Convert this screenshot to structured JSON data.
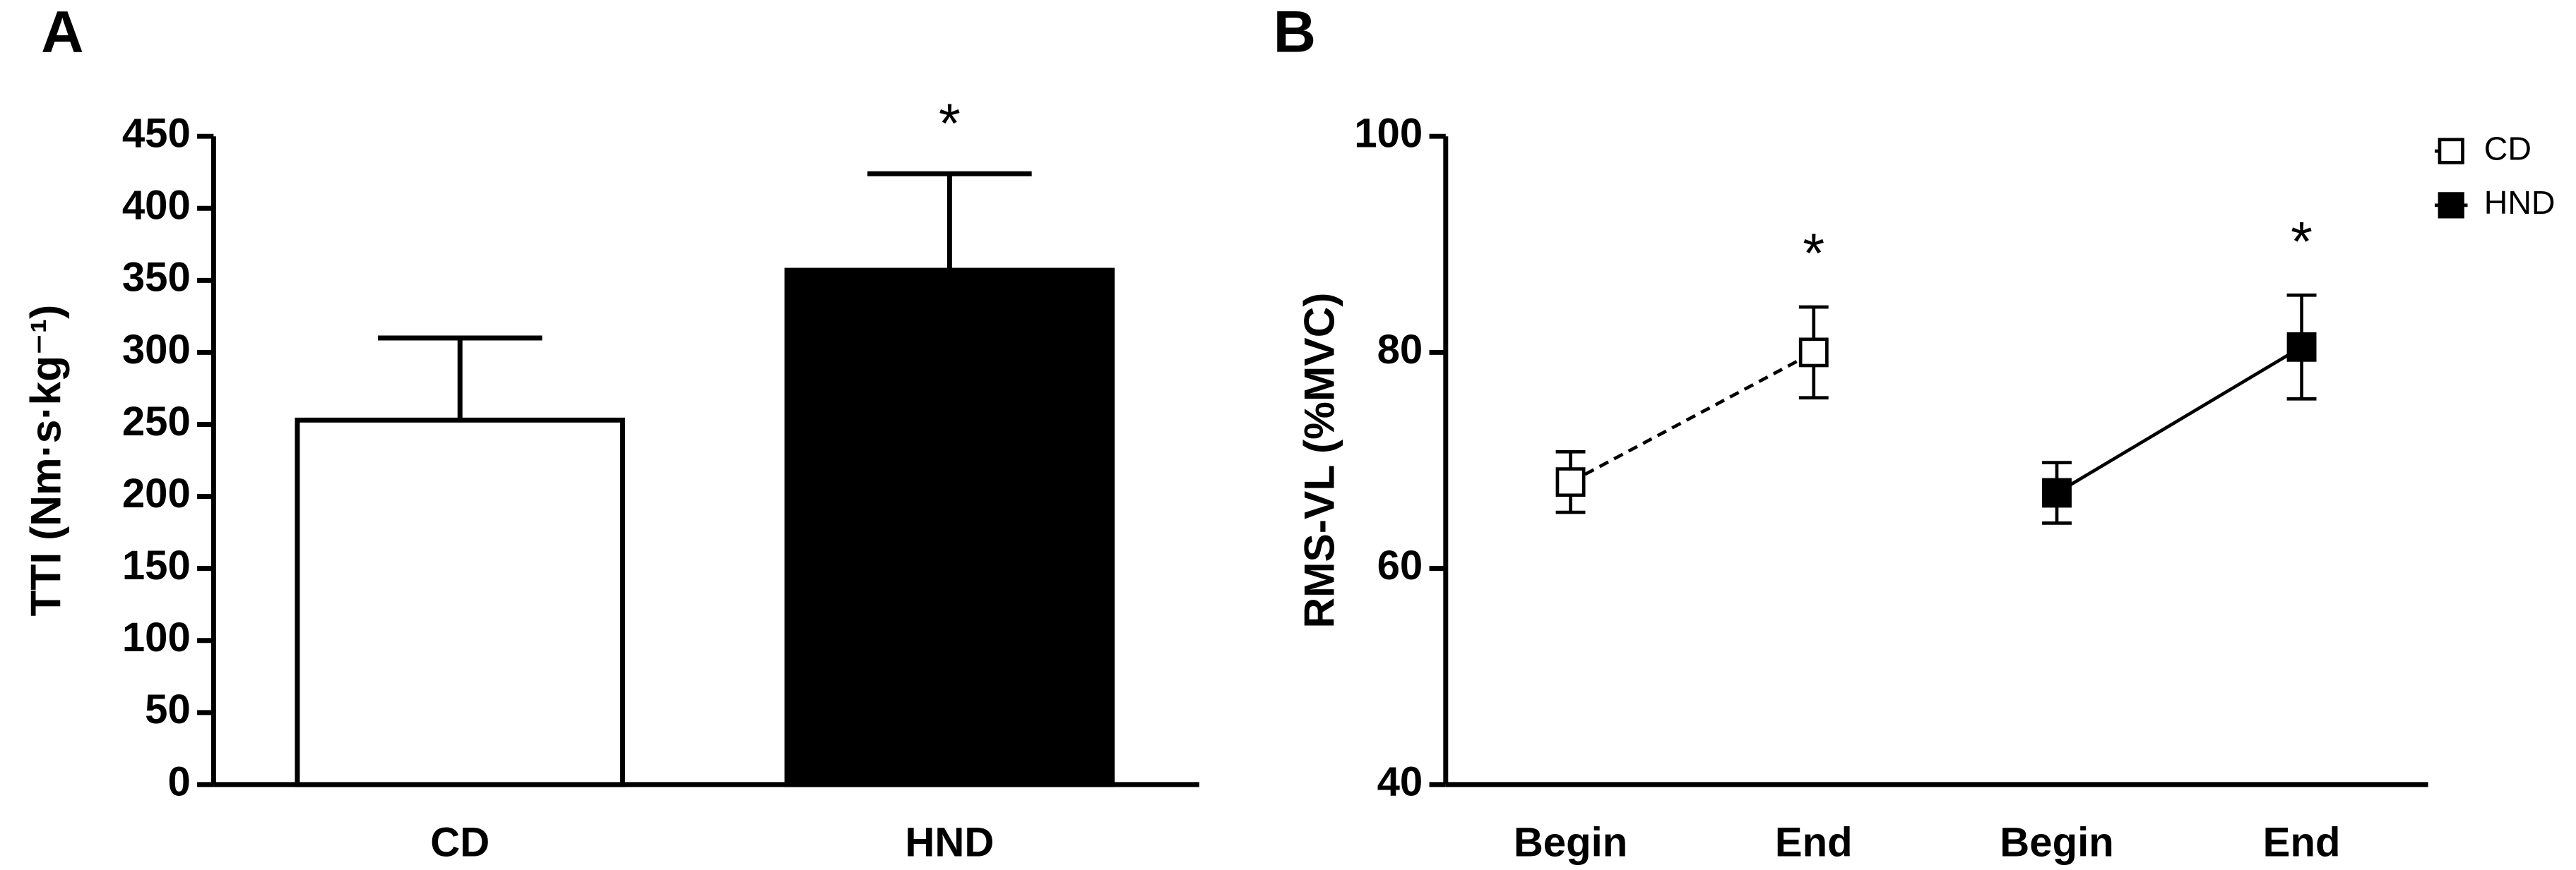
{
  "chart_data": [
    {
      "type": "bar",
      "panel": "A",
      "ylabel": "TTI (Nm·s·kg⁻¹)",
      "categories": [
        "CD",
        "HND"
      ],
      "values": [
        253,
        357
      ],
      "errors": [
        57,
        67
      ],
      "colors": [
        "#ffffff",
        "#000000"
      ],
      "annotation": "*",
      "ylim": [
        0,
        450
      ],
      "yticks": [
        0,
        50,
        100,
        150,
        200,
        250,
        300,
        350,
        400,
        450
      ]
    },
    {
      "type": "line",
      "panel": "B",
      "ylabel": "RMS-VL (%MVC)",
      "categories": [
        "Begin",
        "End",
        "Begin",
        "End"
      ],
      "series": [
        {
          "name": "CD",
          "color": "#000000",
          "fill": "#ffffff",
          "dashed": true,
          "values": [
            68,
            80,
            null,
            null
          ],
          "errors": [
            2.8,
            4.2,
            null,
            null
          ],
          "annotation": "*"
        },
        {
          "name": "HND",
          "color": "#000000",
          "fill": "#000000",
          "dashed": false,
          "values": [
            null,
            null,
            67,
            80.5
          ],
          "errors": [
            null,
            null,
            2.8,
            4.8
          ],
          "annotation": "*"
        }
      ],
      "ylim": [
        40,
        100
      ],
      "yticks": [
        40,
        60,
        80,
        100
      ],
      "legend": "upper right"
    }
  ]
}
